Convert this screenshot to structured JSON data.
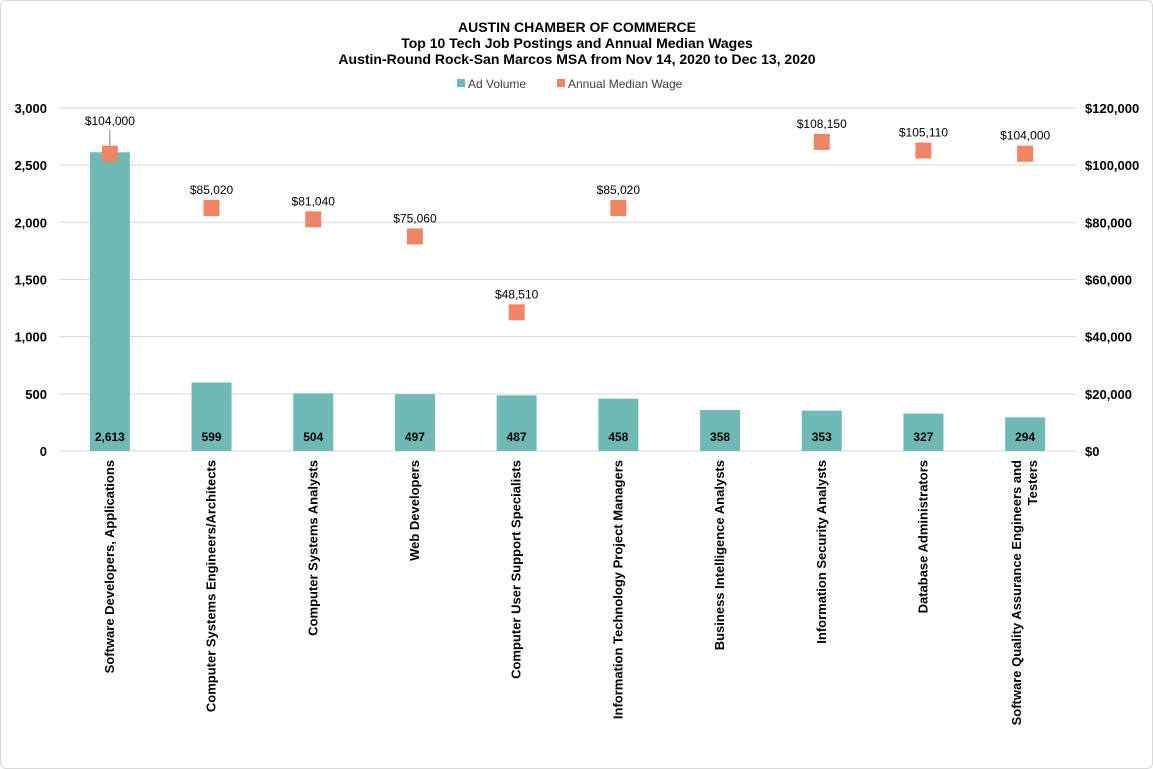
{
  "chart_data": {
    "type": "bar",
    "title": [
      "AUSTIN CHAMBER OF COMMERCE",
      "Top 10 Tech Job Postings and Annual  Median Wages",
      "Austin-Round Rock-San Marcos MSA from Nov 14, 2020 to Dec 13, 2020"
    ],
    "categories": [
      [
        "Software Developers, Applications"
      ],
      [
        "Computer Systems Engineers/Architects"
      ],
      [
        "Computer Systems Analysts"
      ],
      [
        "Web Developers"
      ],
      [
        "Computer User Support Specialists"
      ],
      [
        "Information Technology Project Managers"
      ],
      [
        "Business Intelligence Analysts"
      ],
      [
        "Information Security Analysts"
      ],
      [
        "Database Administrators"
      ],
      [
        "Software Quality Assurance Engineers and",
        "Testers"
      ]
    ],
    "series": [
      {
        "name": "Ad Volume",
        "type": "bar",
        "axis": "left",
        "color": "#6fbab5",
        "values": [
          2613,
          599,
          504,
          497,
          487,
          458,
          358,
          353,
          327,
          294
        ],
        "labels": [
          "2,613",
          "599",
          "504",
          "497",
          "487",
          "458",
          "358",
          "353",
          "327",
          "294"
        ]
      },
      {
        "name": "Annual Median Wage",
        "type": "scatter",
        "axis": "right",
        "color": "#f08566",
        "values": [
          104000,
          85020,
          81040,
          75060,
          48510,
          85020,
          null,
          108150,
          105110,
          104000
        ],
        "labels": [
          "$104,000",
          "$85,020",
          "$81,040",
          "$75,060",
          "$48,510",
          "$85,020",
          "",
          "$108,150",
          "$105,110",
          "$104,000"
        ]
      }
    ],
    "ylim": [
      0,
      3000
    ],
    "y2lim": [
      0,
      120000
    ],
    "yticks": [
      "0",
      "500",
      "1,000",
      "1,500",
      "2,000",
      "2,500",
      "3,000"
    ],
    "y2ticks": [
      "$0",
      "$20,000",
      "$40,000",
      "$60,000",
      "$80,000",
      "$100,000",
      "$120,000"
    ],
    "legend_position": "top-center",
    "grid": true
  }
}
